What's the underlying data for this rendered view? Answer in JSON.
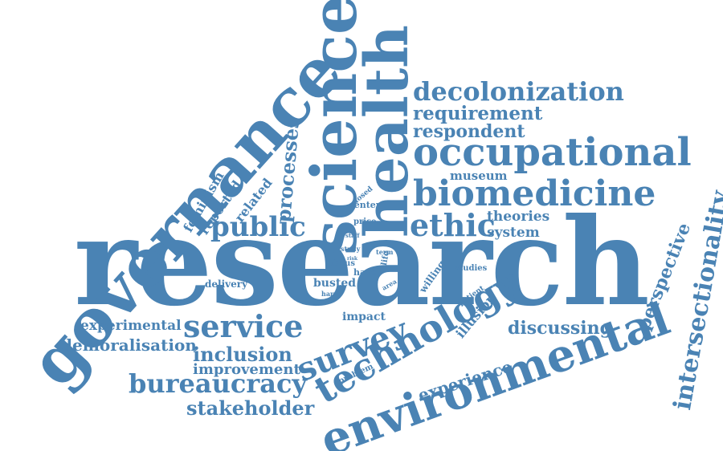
{
  "accent_color": "#4a83b4",
  "words": {
    "research": "research",
    "governance": "governance",
    "science": "science",
    "health": "health",
    "environmental": "environmental",
    "technology": "technology",
    "occupational": "occupational",
    "biomedicine": "biomedicine",
    "survey": "survey",
    "service": "service",
    "intersectionality": "intersectionality",
    "decolonization": "decolonization",
    "requirement": "requirement",
    "respondent": "respondent",
    "processes": "processes",
    "public": "public",
    "ethic": "ethic",
    "bureaucracy": "bureaucracy",
    "stakeholder": "stakeholder",
    "inclusion": "inclusion",
    "improvement": "improvement",
    "demoralisation": "demoralisation",
    "experimental": "experimental",
    "experience": "experience",
    "discussing": "discussing",
    "perspective": "perspective",
    "illusion": "illusion",
    "impact": "impact",
    "delivery": "delivery",
    "feminism": "feminism",
    "reported": "reported",
    "related": "related",
    "museum": "museum",
    "theories": "theories",
    "system": "system",
    "center": "center",
    "closed": "closed",
    "price": "price",
    "staff": "staff",
    "study": "study",
    "risk": "risk",
    "term": "term",
    "life": "life",
    "focus": "focus",
    "have": "have",
    "busted": "busted",
    "harm": "harm",
    "area": "area",
    "willing": "willing",
    "studies": "studies",
    "patient": "patient",
    "problem": "problem"
  }
}
